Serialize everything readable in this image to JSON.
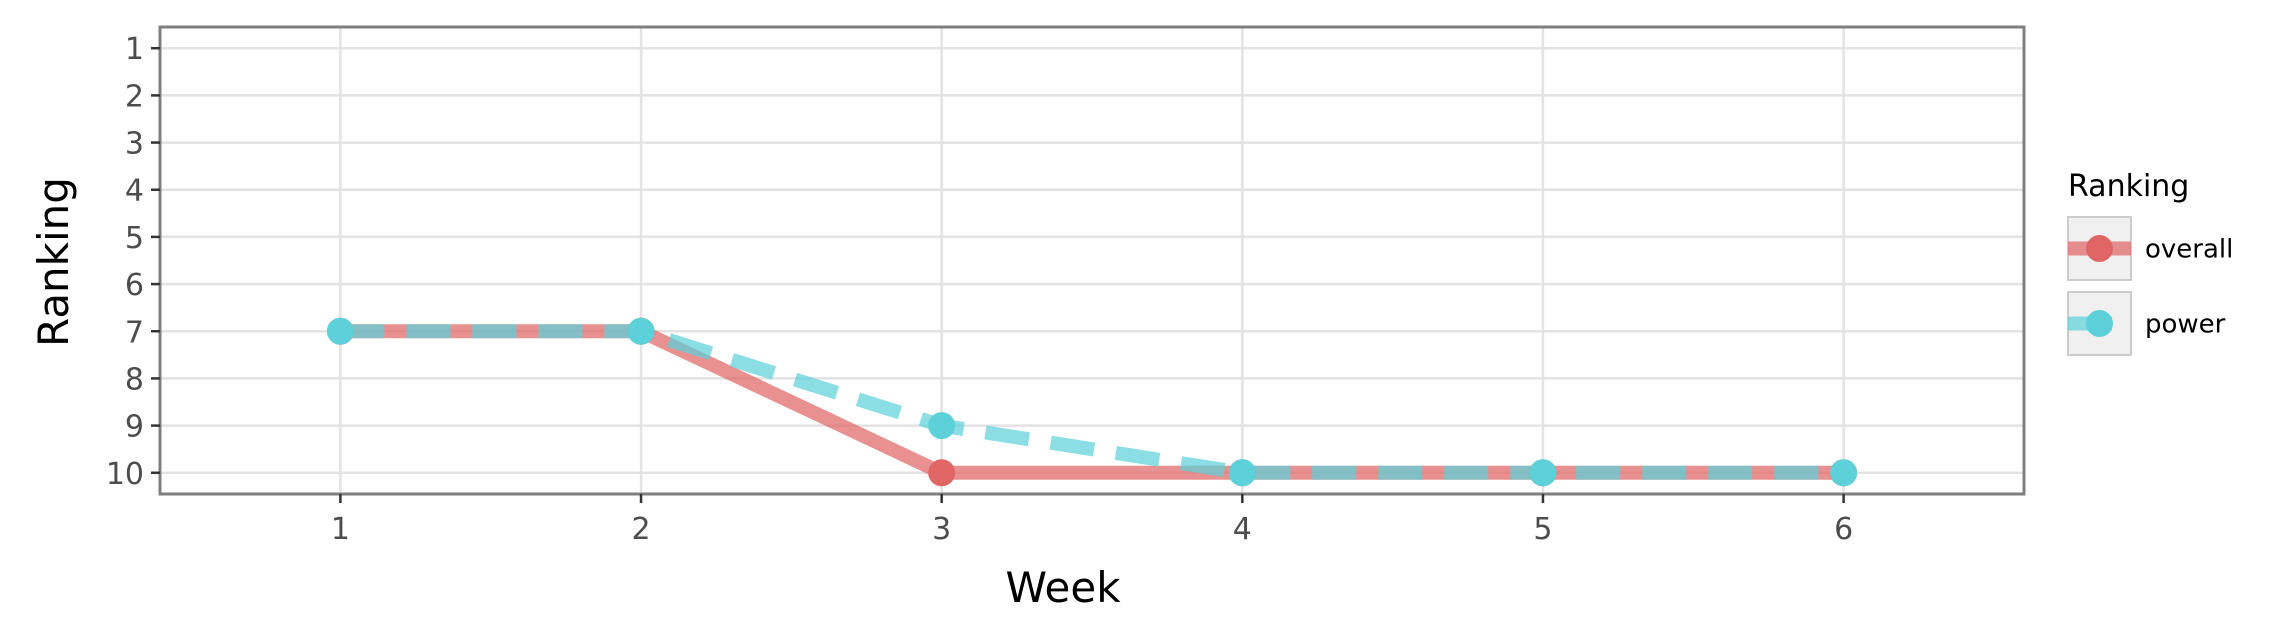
{
  "chart_data": {
    "type": "line",
    "xlabel": "Week",
    "ylabel": "Ranking",
    "x": [
      1,
      2,
      3,
      4,
      5,
      6
    ],
    "x_ticks": [
      "1",
      "2",
      "3",
      "4",
      "5",
      "6"
    ],
    "y_ticks": [
      "1",
      "2",
      "3",
      "4",
      "5",
      "6",
      "7",
      "8",
      "9",
      "10"
    ],
    "xlim": [
      0.4,
      6.6
    ],
    "ylim": [
      10.45,
      0.55
    ],
    "y_reversed": true,
    "grid": true,
    "legend": {
      "title": "Ranking",
      "position": "right"
    },
    "series": [
      {
        "name": "overall",
        "values": [
          7,
          7,
          10,
          10,
          10,
          10
        ],
        "color": "#e06666",
        "line_style": "solid"
      },
      {
        "name": "power",
        "values": [
          7,
          7,
          9,
          10,
          10,
          10
        ],
        "color": "#5dd1d9",
        "line_style": "dashed"
      }
    ]
  }
}
